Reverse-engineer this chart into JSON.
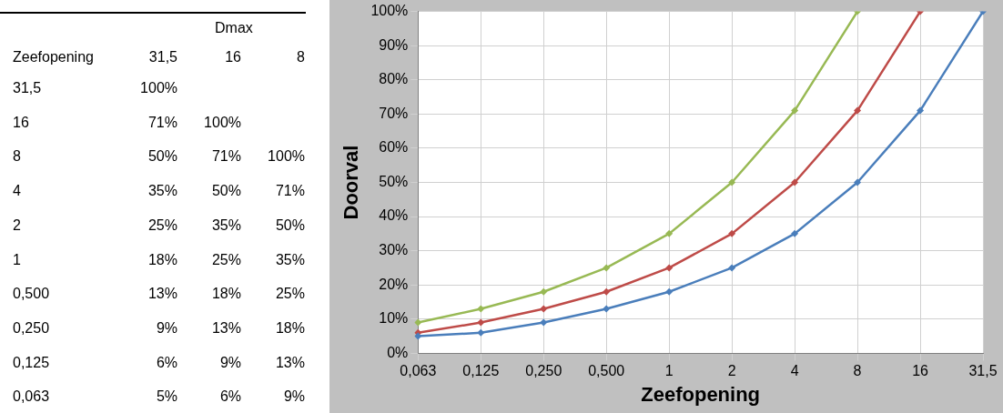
{
  "chart_data": {
    "type": "line",
    "xlabel": "Zeefopening",
    "ylabel": "Doorval",
    "annotations": [
      "Dmax",
      "31,5",
      "16",
      "8",
      "100%",
      "71%",
      "100%",
      "50%",
      "71%",
      "100%",
      "35%",
      "50%",
      "71%",
      "25%",
      "35%",
      "50%",
      "18%",
      "25%",
      "35%",
      "13%",
      "18%",
      "25%",
      "9%",
      "13%",
      "18%",
      "6%",
      "9%",
      "13%",
      "5%",
      "6%",
      "9%"
    ],
    "categories": [
      "0,063",
      "0,125",
      "0,250",
      "0,500",
      "1",
      "2",
      "4",
      "8",
      "16",
      "31,5"
    ],
    "series": [
      {
        "color": "#4a7ebb",
        "values": [
          5,
          6,
          9,
          13,
          18,
          25,
          35,
          50,
          71,
          100
        ]
      },
      {
        "color": "#be4b48",
        "values": [
          6,
          9,
          13,
          18,
          25,
          35,
          50,
          71,
          100,
          null
        ]
      },
      {
        "color": "#98b954",
        "values": [
          9,
          13,
          18,
          25,
          35,
          50,
          71,
          100,
          null,
          null
        ]
      }
    ],
    "ylim": [
      0,
      100
    ],
    "yticks": [
      {
        "value": 0,
        "label": "0%"
      },
      {
        "value": 10,
        "label": "10%"
      },
      {
        "value": 20,
        "label": "20%"
      },
      {
        "value": 30,
        "label": "30%"
      },
      {
        "value": 40,
        "label": "40%"
      },
      {
        "value": 50,
        "label": "50%"
      },
      {
        "value": 60,
        "label": "60%"
      },
      {
        "value": 70,
        "label": "70%"
      },
      {
        "value": 80,
        "label": "80%"
      },
      {
        "value": 90,
        "label": "90%"
      },
      {
        "value": 100,
        "label": "100%"
      }
    ],
    "grid": true,
    "legend": false,
    "marker": "diamond",
    "line_style": "solid"
  }
}
